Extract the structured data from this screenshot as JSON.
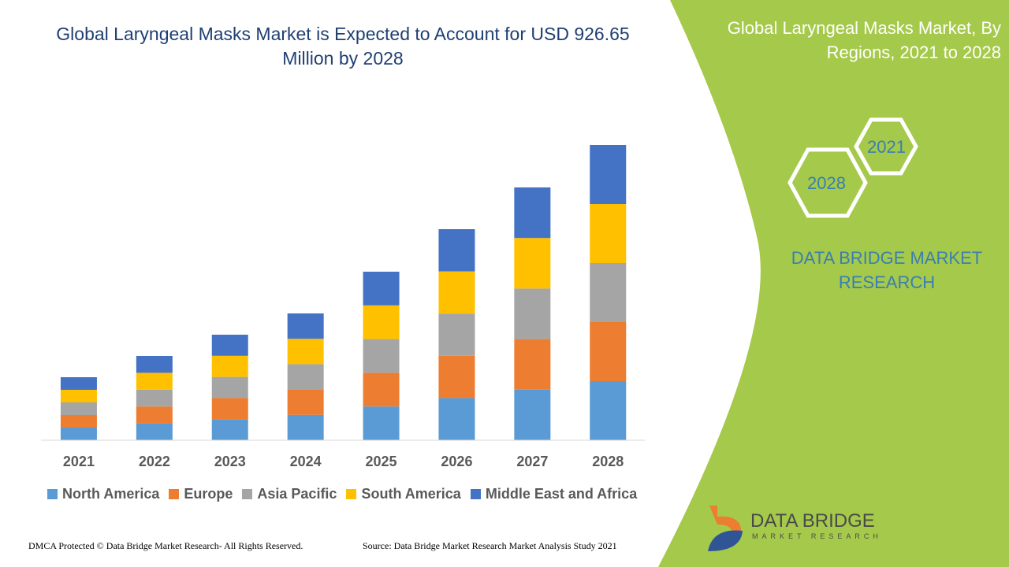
{
  "title": "Global Laryngeal Masks Market is Expected to Account for USD 926.65 Million by 2028",
  "side_panel": {
    "title": "Global Laryngeal Masks Market, By Regions, 2021 to 2028",
    "hex_top": "2021",
    "hex_bottom": "2028",
    "brand": "DATA BRIDGE MARKET RESEARCH",
    "color": "#a5c94a"
  },
  "logo": {
    "name": "DATA BRIDGE",
    "sub": "MARKET RESEARCH"
  },
  "footer": {
    "dmca": "DMCA Protected © Data Bridge Market Research- All Rights Reserved.",
    "source": "Source: Data Bridge Market Research Market Analysis Study 2021"
  },
  "chart_data": {
    "type": "bar",
    "stacked": true,
    "title": "",
    "xlabel": "",
    "ylabel": "",
    "grid": false,
    "legend": "bottom",
    "categories": [
      "2021",
      "2022",
      "2023",
      "2024",
      "2025",
      "2026",
      "2027",
      "2028"
    ],
    "series": [
      {
        "name": "North America",
        "color": "#5b9bd5",
        "values": [
          16,
          21.4,
          26.8,
          32.2,
          42.8,
          53.6,
          64.2,
          75
        ]
      },
      {
        "name": "Europe",
        "color": "#ed7d31",
        "values": [
          16,
          21.4,
          26.8,
          32.2,
          42.8,
          53.6,
          64.2,
          75
        ]
      },
      {
        "name": "Asia Pacific",
        "color": "#a5a5a5",
        "values": [
          16,
          21.4,
          26.8,
          32.2,
          42.8,
          53.6,
          64.2,
          75
        ]
      },
      {
        "name": "South America",
        "color": "#ffc000",
        "values": [
          16,
          21.4,
          26.8,
          32.2,
          42.8,
          53.6,
          64.2,
          75
        ]
      },
      {
        "name": "Middle East and Africa",
        "color": "#4472c4",
        "values": [
          16,
          21.4,
          26.8,
          32.2,
          42.8,
          53.6,
          64.2,
          75
        ]
      }
    ]
  }
}
